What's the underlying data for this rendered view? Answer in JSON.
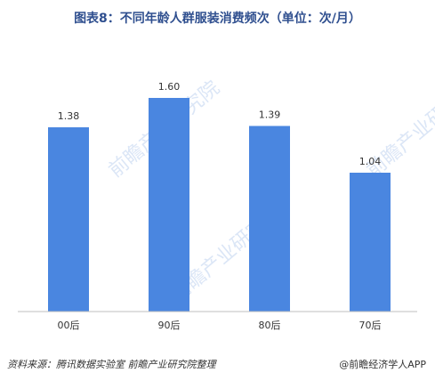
{
  "title": "图表8：不同年龄人群服装消费频次（单位：次/月）",
  "colors": {
    "bar": "#4a86e0",
    "axis": "#bfbfbf",
    "title": "#2f4f8f",
    "text": "#333333",
    "watermark": "#9bb8e8"
  },
  "watermark": {
    "text": "前瞻产业研究院"
  },
  "footer": {
    "source": "资料来源：腾讯数据实验室 前瞻产业研究院整理",
    "brand": "@前瞻经济学人APP"
  },
  "chart_data": {
    "type": "bar",
    "categories": [
      "00后",
      "90后",
      "80后",
      "70后"
    ],
    "values": [
      1.38,
      1.6,
      1.39,
      1.04
    ],
    "data_labels": [
      "1.38",
      "1.60",
      "1.39",
      "1.04"
    ],
    "title": "图表8：不同年龄人群服装消费频次（单位：次/月）",
    "xlabel": "",
    "ylabel": "",
    "ylim": [
      0,
      2.0
    ],
    "grid": false,
    "legend": "none"
  }
}
